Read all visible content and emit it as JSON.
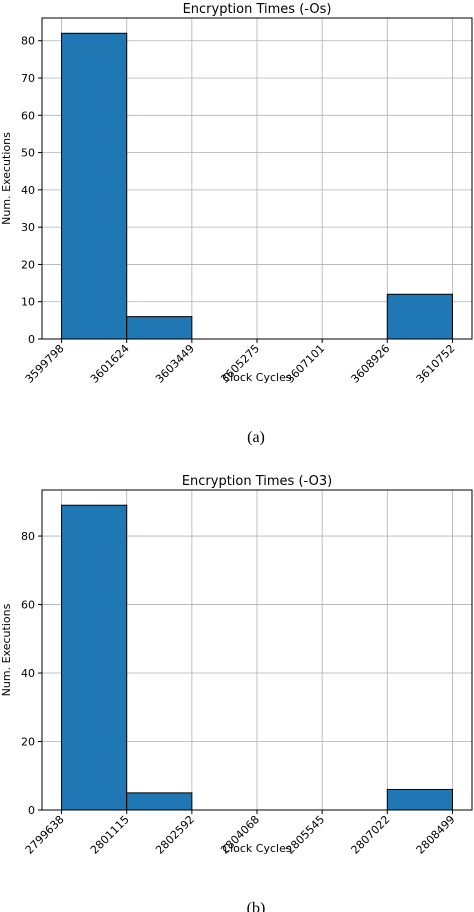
{
  "chart_data": [
    {
      "type": "histogram",
      "title": "Encryption Times (-Os)",
      "x_label": "Clock Cycles",
      "y_label": "Num. Executions",
      "caption": "(a)",
      "bins": [
        3599798,
        3601624,
        3603449,
        3605275,
        3607101,
        3608926,
        3610752
      ],
      "values": [
        82,
        6,
        0,
        0,
        0,
        12
      ],
      "color": "#1f77b4",
      "xlim": [
        3599250,
        3611300
      ],
      "xticks": [
        3599798,
        3601624,
        3603449,
        3605275,
        3607101,
        3608926,
        3610752
      ],
      "ylim": [
        0,
        86.1
      ],
      "yticks": [
        0,
        10,
        20,
        30,
        40,
        50,
        60,
        70,
        80
      ],
      "grid": true
    },
    {
      "type": "histogram",
      "title": "Encryption Times (-O3)",
      "x_label": "Clock Cycles",
      "y_label": "Num. Executions",
      "caption": "(b)",
      "bins": [
        2799638,
        2801115,
        2802592,
        2804068,
        2805545,
        2807022,
        2808499
      ],
      "values": [
        89,
        5,
        0,
        0,
        0,
        6
      ],
      "color": "#1f77b4",
      "xlim": [
        2799195,
        2808942
      ],
      "xticks": [
        2799638,
        2801115,
        2802592,
        2804068,
        2805545,
        2807022,
        2808499
      ],
      "ylim": [
        0,
        93.45
      ],
      "yticks": [
        0,
        20,
        40,
        60,
        80
      ],
      "grid": true
    }
  ]
}
